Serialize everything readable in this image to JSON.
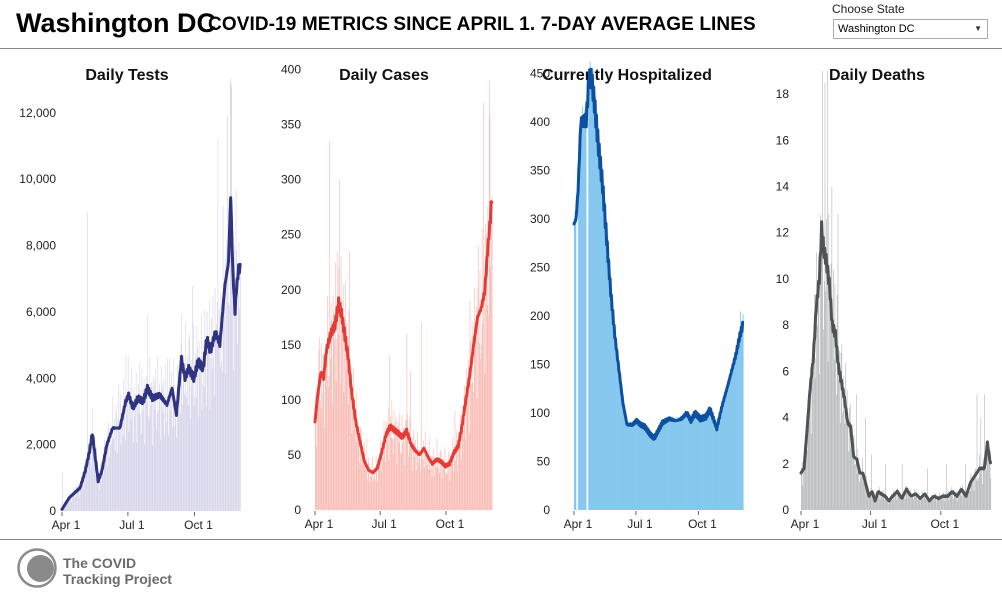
{
  "header": {
    "state_name": "Washington DC",
    "subtitle": "COVID-19 METRICS SINCE APRIL 1. 7-DAY AVERAGE LINES",
    "choose_label": "Choose State",
    "selected_state": "Washington DC"
  },
  "footer": {
    "org_line1": "The COVID",
    "org_line2": "Tracking Project"
  },
  "chart_data": [
    {
      "type": "bar",
      "title": "Daily Tests",
      "xlabel": "",
      "ylabel": "",
      "ylim": [
        0,
        13500
      ],
      "yticks": [
        0,
        2000,
        4000,
        6000,
        8000,
        10000,
        12000
      ],
      "ytick_labels": [
        "0",
        "2,000",
        "4,000",
        "6,000",
        "8,000",
        "10,000",
        "12,000"
      ],
      "xtick_labels": [
        "Apr 1",
        "Jul 1",
        "Oct 1"
      ],
      "xticks_day": [
        0,
        91,
        183
      ],
      "days": 250,
      "bar_color": "#d3d1e8",
      "line_color": "#2f3380",
      "avg_keys": [
        [
          0,
          50
        ],
        [
          10,
          400
        ],
        [
          25,
          700
        ],
        [
          32,
          1200
        ],
        [
          38,
          1800
        ],
        [
          42,
          2350
        ],
        [
          46,
          1600
        ],
        [
          50,
          900
        ],
        [
          55,
          1200
        ],
        [
          62,
          2000
        ],
        [
          70,
          2500
        ],
        [
          80,
          2500
        ],
        [
          88,
          3300
        ],
        [
          92,
          3500
        ],
        [
          98,
          3100
        ],
        [
          105,
          3400
        ],
        [
          112,
          3300
        ],
        [
          118,
          3700
        ],
        [
          125,
          3400
        ],
        [
          135,
          3500
        ],
        [
          145,
          3200
        ],
        [
          152,
          3700
        ],
        [
          158,
          2900
        ],
        [
          165,
          4600
        ],
        [
          170,
          4000
        ],
        [
          175,
          4300
        ],
        [
          182,
          4000
        ],
        [
          188,
          4500
        ],
        [
          195,
          4300
        ],
        [
          200,
          5200
        ],
        [
          205,
          4800
        ],
        [
          212,
          5400
        ],
        [
          218,
          5000
        ],
        [
          225,
          6800
        ],
        [
          230,
          7500
        ],
        [
          233,
          9500
        ],
        [
          236,
          7200
        ],
        [
          239,
          6000
        ],
        [
          241,
          6700
        ],
        [
          244,
          7300
        ],
        [
          246,
          7300
        ]
      ],
      "spikes": [
        [
          0,
          1150
        ],
        [
          35,
          9000
        ],
        [
          78,
          3800
        ],
        [
          88,
          4700
        ],
        [
          110,
          4300
        ],
        [
          118,
          5900
        ],
        [
          145,
          4600
        ],
        [
          180,
          6800
        ],
        [
          200,
          6000
        ],
        [
          215,
          11200
        ],
        [
          222,
          9200
        ],
        [
          228,
          11900
        ],
        [
          232,
          12900
        ],
        [
          234,
          12800
        ],
        [
          240,
          9700
        ],
        [
          244,
          8100
        ]
      ]
    },
    {
      "type": "bar",
      "title": "Daily Cases",
      "xlabel": "",
      "ylabel": "",
      "ylim": [
        0,
        405
      ],
      "yticks": [
        0,
        50,
        100,
        150,
        200,
        250,
        300,
        350,
        400
      ],
      "ytick_labels": [
        "0",
        "50",
        "100",
        "150",
        "200",
        "250",
        "300",
        "350",
        "400"
      ],
      "xtick_labels": [
        "Apr 1",
        "Jul 1",
        "Oct 1"
      ],
      "xticks_day": [
        0,
        91,
        183
      ],
      "days": 250,
      "bar_color": "#f9b4ad",
      "line_color": "#e53a35",
      "avg_keys": [
        [
          0,
          80
        ],
        [
          3,
          100
        ],
        [
          8,
          125
        ],
        [
          12,
          120
        ],
        [
          16,
          145
        ],
        [
          22,
          160
        ],
        [
          28,
          168
        ],
        [
          33,
          188
        ],
        [
          37,
          178
        ],
        [
          41,
          162
        ],
        [
          46,
          140
        ],
        [
          51,
          108
        ],
        [
          57,
          80
        ],
        [
          63,
          62
        ],
        [
          69,
          44
        ],
        [
          75,
          36
        ],
        [
          81,
          34
        ],
        [
          87,
          38
        ],
        [
          93,
          52
        ],
        [
          99,
          68
        ],
        [
          105,
          76
        ],
        [
          110,
          73
        ],
        [
          116,
          70
        ],
        [
          122,
          66
        ],
        [
          128,
          72
        ],
        [
          134,
          60
        ],
        [
          140,
          54
        ],
        [
          146,
          50
        ],
        [
          152,
          56
        ],
        [
          158,
          48
        ],
        [
          164,
          42
        ],
        [
          170,
          46
        ],
        [
          176,
          44
        ],
        [
          182,
          40
        ],
        [
          188,
          42
        ],
        [
          194,
          52
        ],
        [
          200,
          58
        ],
        [
          205,
          75
        ],
        [
          210,
          97
        ],
        [
          216,
          122
        ],
        [
          222,
          152
        ],
        [
          227,
          175
        ],
        [
          232,
          183
        ],
        [
          237,
          198
        ],
        [
          241,
          235
        ],
        [
          245,
          265
        ],
        [
          247,
          285
        ]
      ],
      "spikes": [
        [
          5,
          145
        ],
        [
          20,
          335
        ],
        [
          28,
          225
        ],
        [
          34,
          300
        ],
        [
          48,
          235
        ],
        [
          72,
          65
        ],
        [
          104,
          140
        ],
        [
          128,
          160
        ],
        [
          133,
          125
        ],
        [
          148,
          170
        ],
        [
          195,
          90
        ],
        [
          216,
          190
        ],
        [
          228,
          240
        ],
        [
          235,
          370
        ],
        [
          243,
          390
        ]
      ]
    },
    {
      "type": "area",
      "title": "Currently Hospitalized",
      "xlabel": "",
      "ylabel": "",
      "ylim": [
        0,
        460
      ],
      "yticks": [
        0,
        50,
        100,
        150,
        200,
        250,
        300,
        350,
        400,
        450
      ],
      "ytick_labels": [
        "0",
        "50",
        "100",
        "150",
        "200",
        "250",
        "300",
        "350",
        "400",
        "450"
      ],
      "xtick_labels": [
        "Apr 1",
        "Jul 1",
        "Oct 1"
      ],
      "xticks_day": [
        0,
        91,
        183
      ],
      "days": 250,
      "bar_color": "#85c7ee",
      "line_color": "#0d4fa0",
      "gaps": [
        [
          3,
          5
        ],
        [
          18,
          20
        ]
      ],
      "avg_keys": [
        [
          0,
          295
        ],
        [
          3,
          300
        ],
        [
          6,
          330
        ],
        [
          10,
          400
        ],
        [
          18,
          402
        ],
        [
          22,
          445
        ],
        [
          26,
          445
        ],
        [
          30,
          420
        ],
        [
          36,
          375
        ],
        [
          42,
          335
        ],
        [
          48,
          280
        ],
        [
          54,
          225
        ],
        [
          60,
          180
        ],
        [
          66,
          145
        ],
        [
          72,
          110
        ],
        [
          78,
          88
        ],
        [
          86,
          88
        ],
        [
          92,
          92
        ],
        [
          98,
          88
        ],
        [
          104,
          86
        ],
        [
          112,
          78
        ],
        [
          118,
          74
        ],
        [
          124,
          82
        ],
        [
          130,
          90
        ],
        [
          140,
          94
        ],
        [
          150,
          92
        ],
        [
          158,
          94
        ],
        [
          166,
          100
        ],
        [
          172,
          92
        ],
        [
          178,
          100
        ],
        [
          186,
          94
        ],
        [
          194,
          96
        ],
        [
          200,
          104
        ],
        [
          206,
          92
        ],
        [
          210,
          84
        ],
        [
          218,
          108
        ],
        [
          226,
          128
        ],
        [
          232,
          144
        ],
        [
          238,
          160
        ],
        [
          244,
          180
        ],
        [
          248,
          190
        ]
      ],
      "spikes": [
        [
          244,
          205
        ],
        [
          248,
          202
        ]
      ]
    },
    {
      "type": "bar",
      "title": "Daily Deaths",
      "xlabel": "",
      "ylabel": "",
      "ylim": [
        0,
        19.3
      ],
      "yticks": [
        0,
        2,
        4,
        6,
        8,
        10,
        12,
        14,
        16,
        18
      ],
      "ytick_labels": [
        "0",
        "2",
        "4",
        "6",
        "8",
        "10",
        "12",
        "14",
        "16",
        "18"
      ],
      "xtick_labels": [
        "Apr 1",
        "Jul 1",
        "Oct 1"
      ],
      "xticks_day": [
        0,
        91,
        183
      ],
      "days": 250,
      "bar_color": "#b2b5b7",
      "line_color": "#4f5355",
      "avg_keys": [
        [
          0,
          1.6
        ],
        [
          4,
          1.8
        ],
        [
          8,
          3.5
        ],
        [
          12,
          5.3
        ],
        [
          16,
          6.5
        ],
        [
          20,
          8.8
        ],
        [
          24,
          10
        ],
        [
          27,
          12.2
        ],
        [
          30,
          11.2
        ],
        [
          33,
          10.8
        ],
        [
          37,
          9.8
        ],
        [
          41,
          8
        ],
        [
          45,
          7.6
        ],
        [
          49,
          6.2
        ],
        [
          53,
          5.5
        ],
        [
          57,
          4.8
        ],
        [
          61,
          3.8
        ],
        [
          65,
          3.6
        ],
        [
          69,
          2.3
        ],
        [
          73,
          2.2
        ],
        [
          77,
          1.6
        ],
        [
          81,
          1.6
        ],
        [
          85,
          1.1
        ],
        [
          89,
          0.6
        ],
        [
          93,
          0.8
        ],
        [
          97,
          0.4
        ],
        [
          101,
          0.8
        ],
        [
          105,
          0.7
        ],
        [
          110,
          0.6
        ],
        [
          115,
          0.4
        ],
        [
          120,
          0.6
        ],
        [
          126,
          0.8
        ],
        [
          132,
          0.5
        ],
        [
          138,
          0.9
        ],
        [
          144,
          0.6
        ],
        [
          150,
          0.7
        ],
        [
          156,
          0.5
        ],
        [
          162,
          0.7
        ],
        [
          168,
          0.4
        ],
        [
          174,
          0.6
        ],
        [
          180,
          0.5
        ],
        [
          186,
          0.6
        ],
        [
          192,
          0.6
        ],
        [
          198,
          0.8
        ],
        [
          204,
          0.6
        ],
        [
          210,
          0.9
        ],
        [
          216,
          0.6
        ],
        [
          222,
          1.2
        ],
        [
          228,
          1.5
        ],
        [
          234,
          1.8
        ],
        [
          240,
          1.8
        ],
        [
          244,
          2.9
        ],
        [
          248,
          2.0
        ]
      ],
      "spikes": [
        [
          4,
          2.8
        ],
        [
          16,
          6
        ],
        [
          22,
          9
        ],
        [
          28,
          19
        ],
        [
          31,
          18.5
        ],
        [
          34,
          19
        ],
        [
          40,
          14
        ],
        [
          44,
          9.8
        ],
        [
          48,
          12.8
        ],
        [
          52,
          6.8
        ],
        [
          60,
          5.2
        ],
        [
          72,
          5
        ],
        [
          84,
          4
        ],
        [
          92,
          2.4
        ],
        [
          110,
          2
        ],
        [
          132,
          2
        ],
        [
          165,
          1.8
        ],
        [
          190,
          2
        ],
        [
          215,
          2
        ],
        [
          230,
          5
        ],
        [
          235,
          4
        ],
        [
          240,
          5
        ],
        [
          244,
          3
        ]
      ]
    }
  ]
}
